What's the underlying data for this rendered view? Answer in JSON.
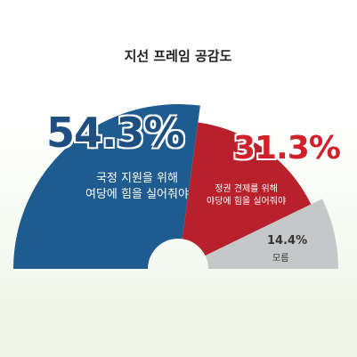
{
  "chart_data": {
    "type": "pie",
    "title": "지선 프레임 공감도",
    "categories": [
      "국정 지원을 위해\n여당에 힘을 실어줘야",
      "정권 견제를 위해\n야당에 힘을 실어줘야",
      "모름"
    ],
    "values": [
      54.3,
      31.3,
      14.4
    ],
    "value_labels": [
      "54.3%",
      "31.3%",
      "14.4%"
    ],
    "colors": [
      "#1e5b8e",
      "#b8202b",
      "#c6c7c9"
    ]
  }
}
